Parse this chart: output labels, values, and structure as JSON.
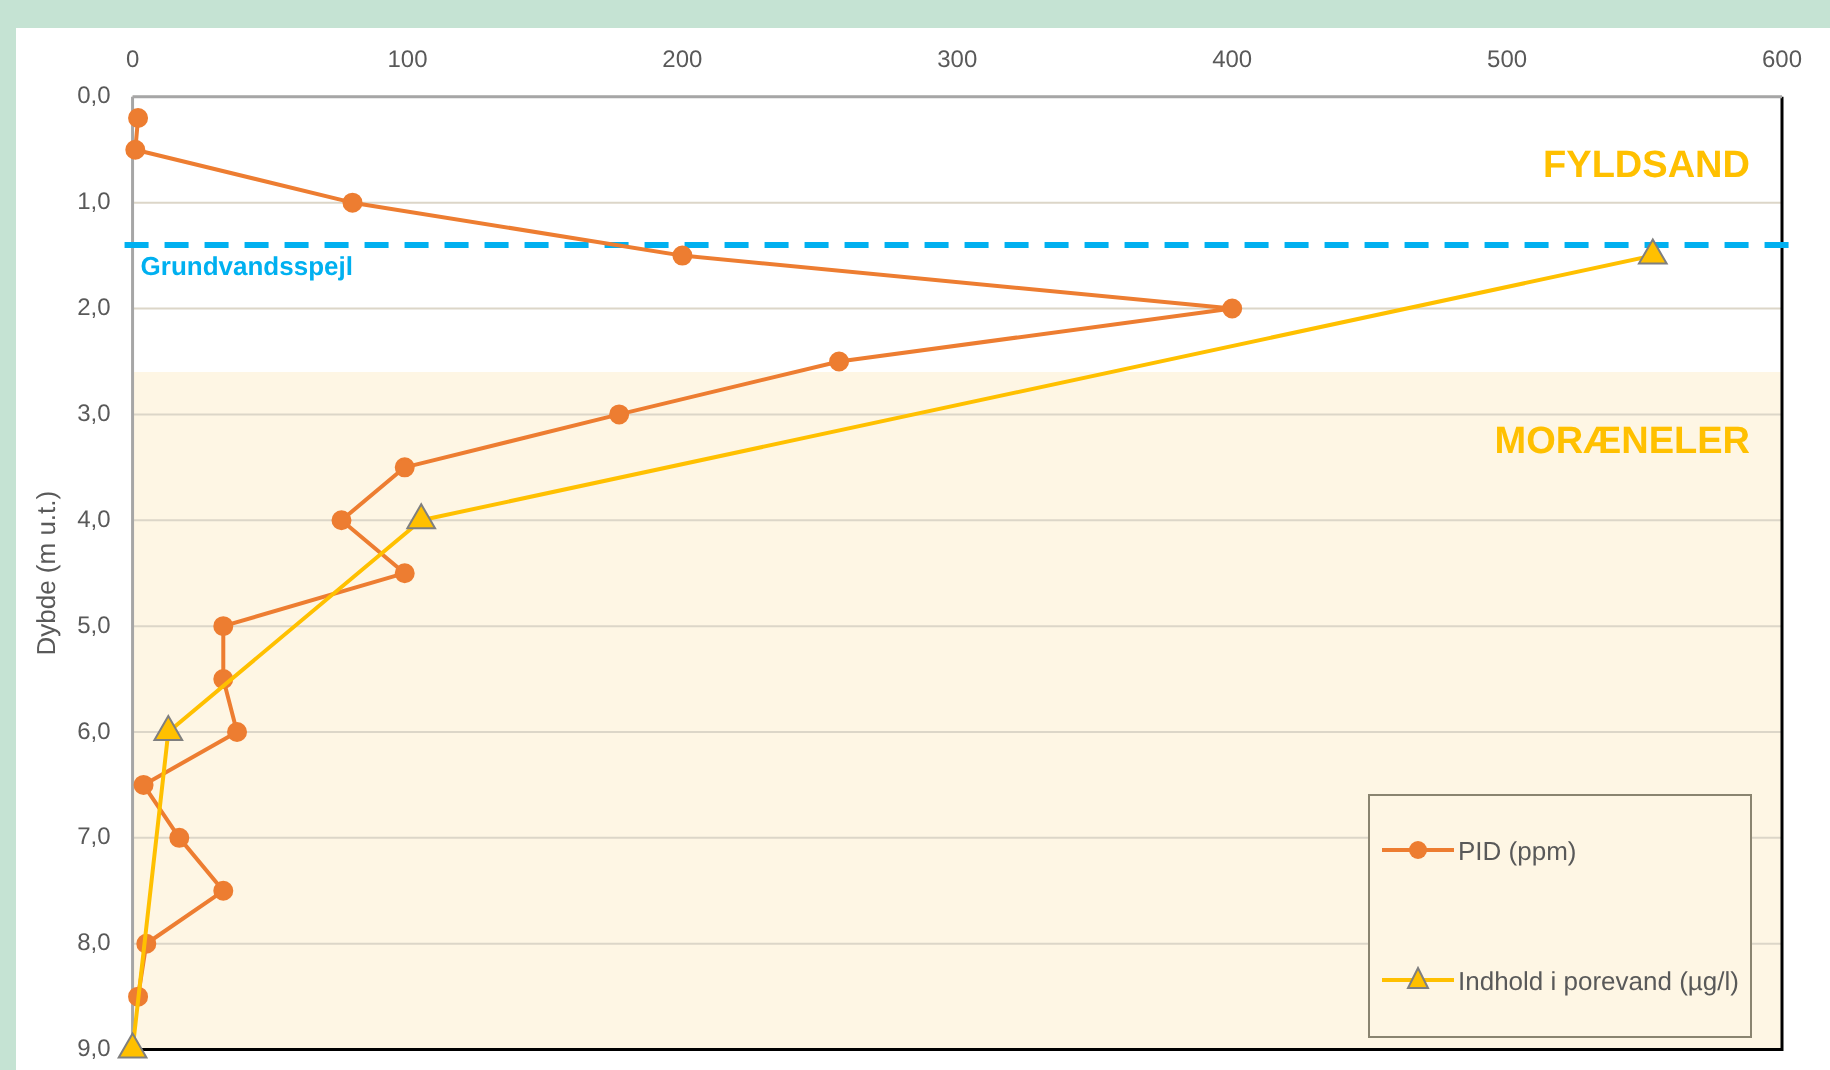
{
  "chart_data": {
    "type": "line",
    "ylabel": "Dybde (m u.t.)",
    "xlim": [
      0,
      600
    ],
    "xticks": [
      0,
      100,
      200,
      300,
      400,
      500,
      600
    ],
    "ylim": [
      9,
      0
    ],
    "yticks": [
      {
        "value": 0,
        "label": "0,0"
      },
      {
        "value": 1,
        "label": "1,0"
      },
      {
        "value": 2,
        "label": "2,0"
      },
      {
        "value": 3,
        "label": "3,0"
      },
      {
        "value": 4,
        "label": "4,0"
      },
      {
        "value": 5,
        "label": "5,0"
      },
      {
        "value": 6,
        "label": "6,0"
      },
      {
        "value": 7,
        "label": "7,0"
      },
      {
        "value": 8,
        "label": "8,0"
      },
      {
        "value": 9,
        "label": "9,0"
      }
    ],
    "grid": "y",
    "legend": "bottom right",
    "series": [
      {
        "name": "PID (ppm)",
        "color": "#ed7d31",
        "marker": "circle",
        "x": [
          2,
          1,
          80,
          200,
          400,
          257,
          177,
          99,
          76,
          99,
          33,
          33,
          38,
          4,
          17,
          33,
          5,
          2
        ],
        "values": [
          0.2,
          0.5,
          1,
          1.5,
          2,
          2.5,
          3,
          3.5,
          4,
          4.5,
          5,
          5.5,
          6,
          6.5,
          7,
          7.5,
          8,
          8.5
        ]
      },
      {
        "name": "Indhold i porevand (µg/l)",
        "color": "#ffc000",
        "marker": "triangle",
        "x": [
          553,
          105,
          13,
          0
        ],
        "values": [
          1.5,
          4,
          6,
          9
        ]
      }
    ],
    "ref_lines": [
      {
        "axis": "y",
        "value": 1.4,
        "label": "Grundvandsspejl",
        "color": "#00b0f0",
        "line_style": "dashed"
      }
    ],
    "annotations": [
      "FYLDSAND"
    ],
    "bands": [
      {
        "axis": "y",
        "from": 2.6,
        "to": 9,
        "label": "MORÆNELER",
        "color": "#fef6e4"
      }
    ]
  }
}
